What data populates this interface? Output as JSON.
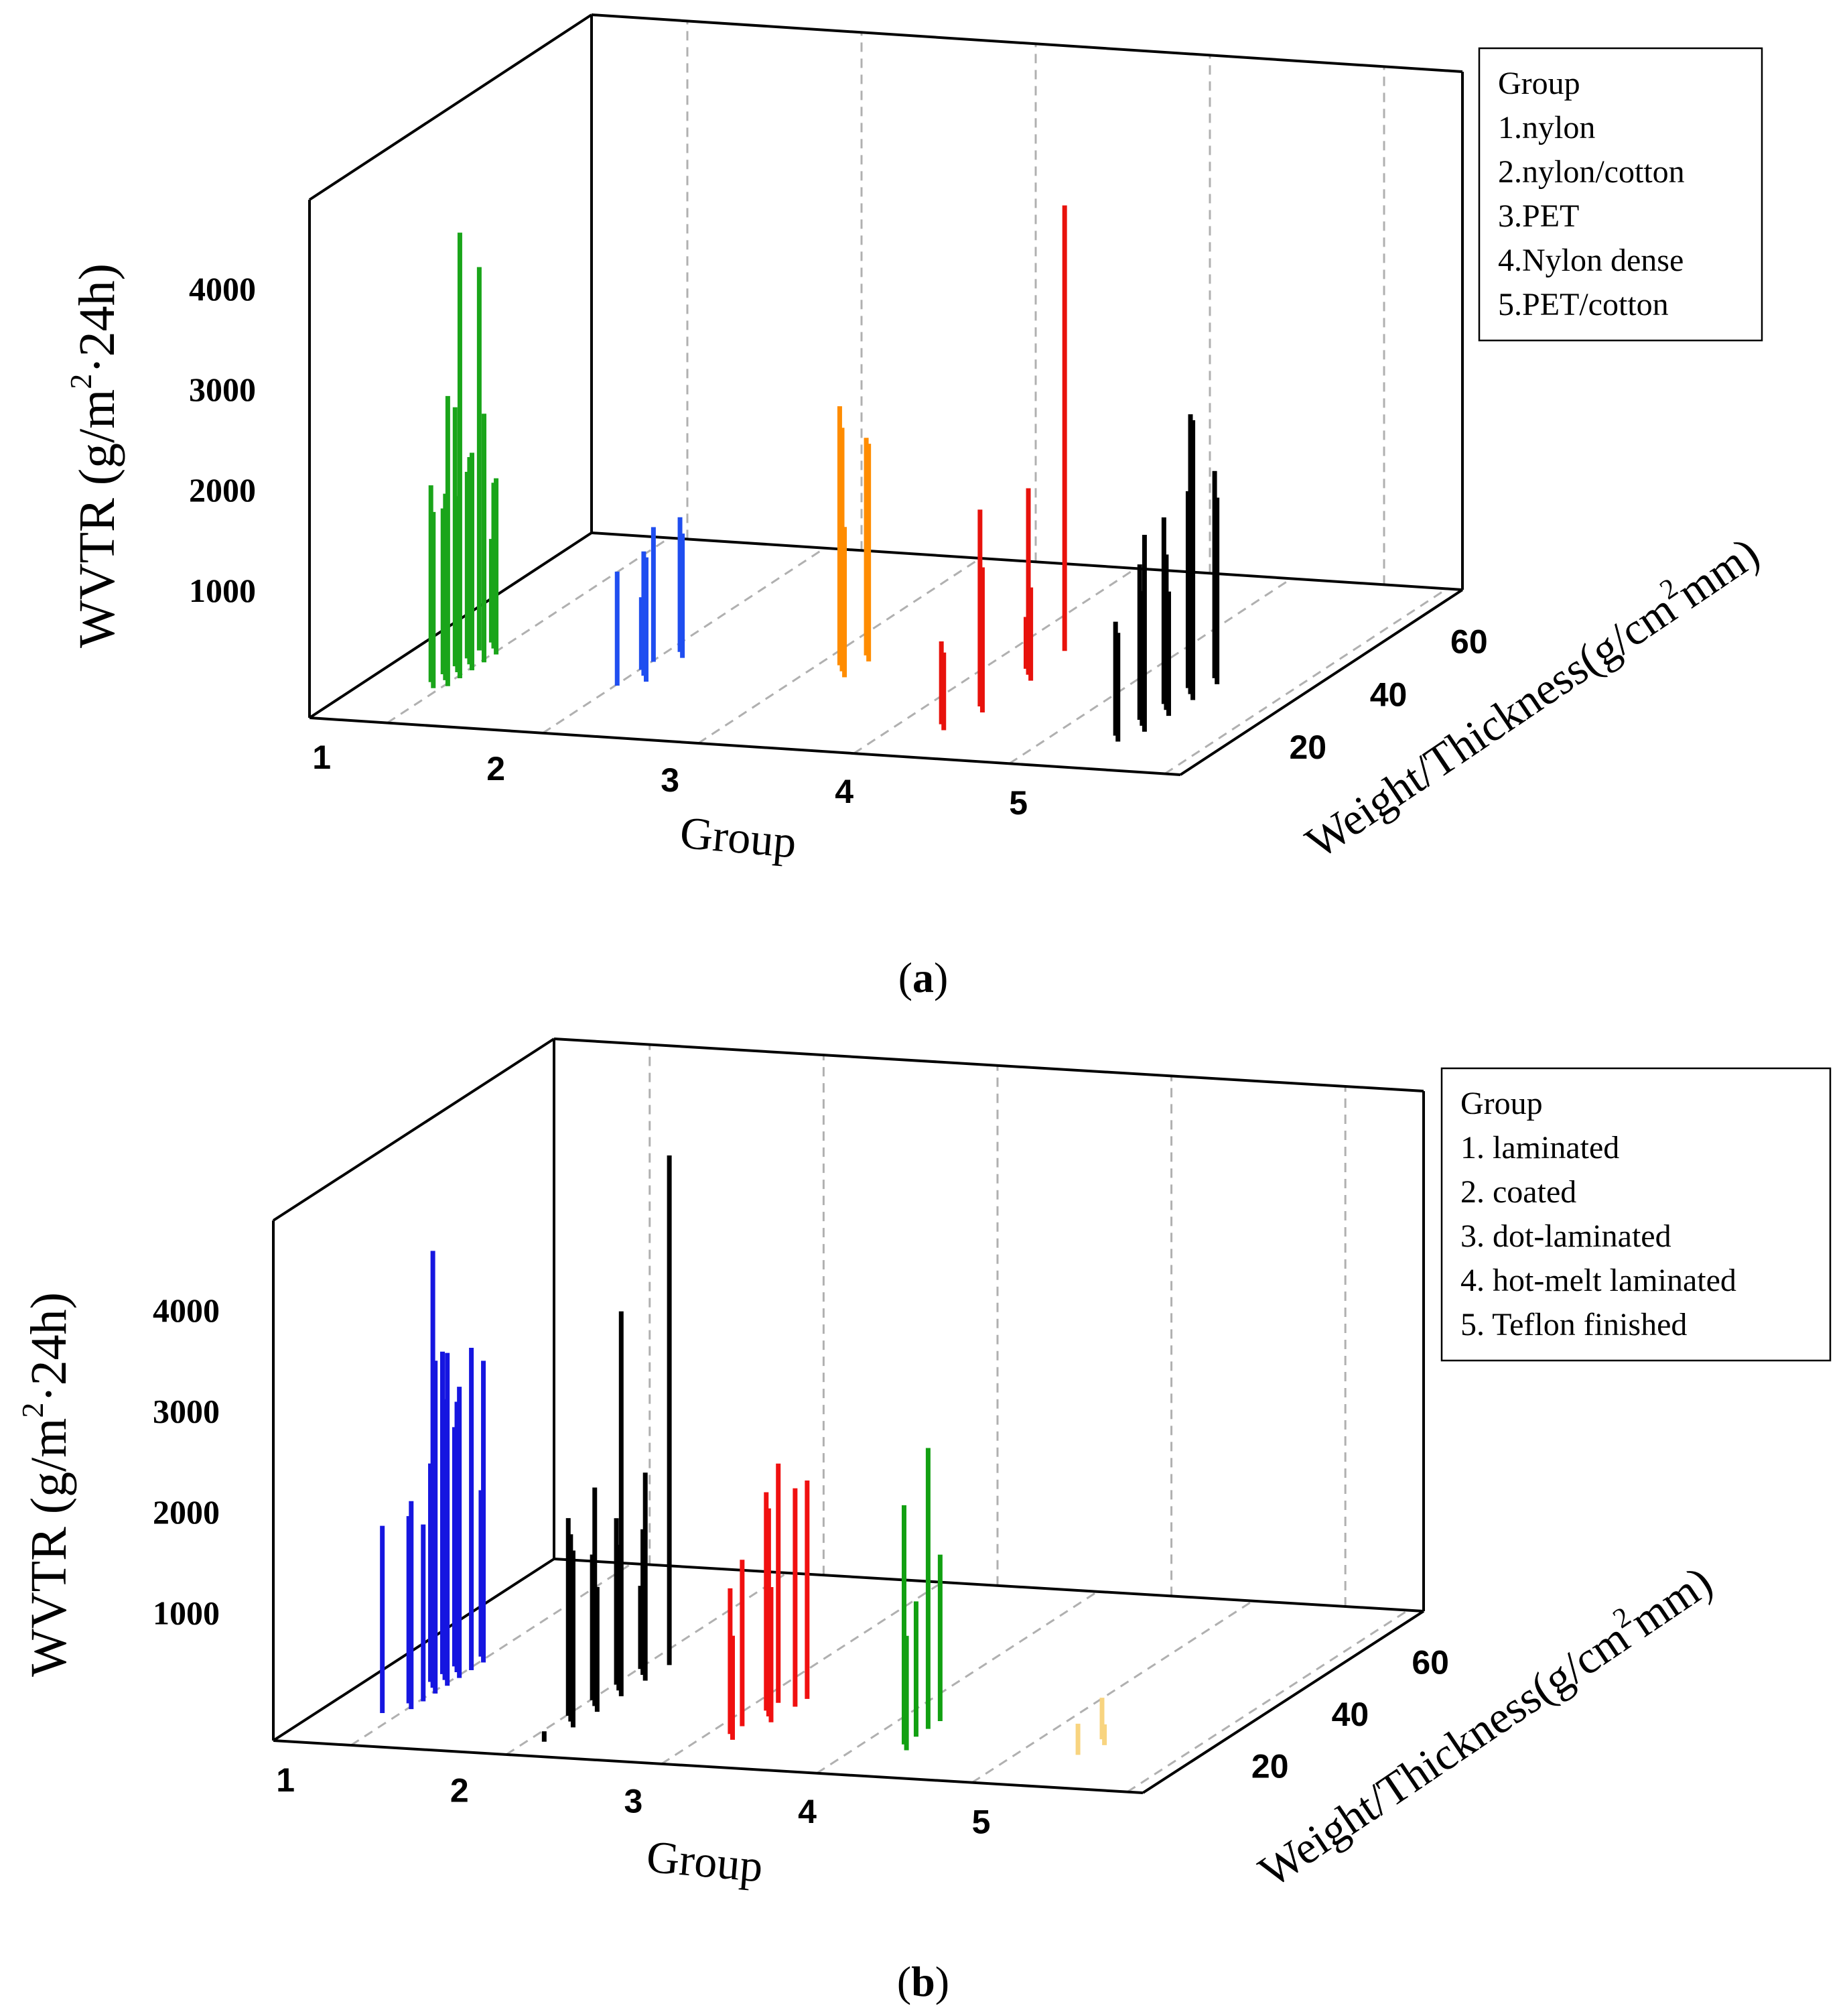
{
  "figure": {
    "caption_a": "a",
    "caption_b": "b"
  },
  "chart_data": [
    {
      "type": "bar3d",
      "panel": "a",
      "ylabel_main": "WVTR (g/m",
      "ylabel_sup": "2",
      "ylabel_end": "·24h)",
      "xlabel": "Group",
      "zlabel_main": "Weight/Thickness(g/cm",
      "zlabel_sup": "2",
      "zlabel_end": "mm)",
      "xticks": [
        "1",
        "2",
        "3",
        "4",
        "5"
      ],
      "yticks": [
        "1000",
        "2000",
        "3000",
        "4000"
      ],
      "zticks": [
        "20",
        "40",
        "60"
      ],
      "y_range": [
        500,
        5500
      ],
      "z_range": [
        0,
        70
      ],
      "legend_title": "Group",
      "legend": [
        "1.nylon",
        "2.nylon/cotton",
        "3.PET",
        "4.Nylon dense",
        "5.PET/cotton"
      ],
      "series": [
        {
          "color": "#1aa51a",
          "group": 1,
          "points": [
            [
              13,
              2200
            ],
            [
              14,
              3300
            ],
            [
              15,
              2400
            ],
            [
              16,
              2300
            ],
            [
              17,
              4800
            ],
            [
              18,
              2100
            ],
            [
              19,
              2200
            ],
            [
              20,
              2600
            ],
            [
              21,
              3000
            ],
            [
              22,
              2500
            ],
            [
              23,
              2900
            ],
            [
              24,
              2300
            ],
            [
              26,
              2200
            ],
            [
              27,
              4200
            ],
            [
              28,
              2100
            ],
            [
              30,
              1500
            ]
          ]
        },
        {
          "color": "#1f4ef0",
          "group": 2,
          "points": [
            [
              18,
              1600
            ],
            [
              20,
              1700
            ],
            [
              22,
              1700
            ],
            [
              24,
              1200
            ],
            [
              27,
              1800
            ],
            [
              29,
              1700
            ],
            [
              31,
              1800
            ]
          ]
        },
        {
          "color": "#ff8c00",
          "group": 3,
          "points": [
            [
              26,
              1950
            ],
            [
              28,
              2850
            ],
            [
              30,
              3000
            ],
            [
              32,
              2600
            ],
            [
              34,
              2600
            ]
          ]
        },
        {
          "color": "#e8120c",
          "group": 4,
          "points": [
            [
              10,
              1250
            ],
            [
              12,
              1300
            ],
            [
              17,
              1900
            ],
            [
              19,
              2400
            ],
            [
              29,
              1400
            ],
            [
              31,
              2300
            ],
            [
              33,
              1000
            ],
            [
              40,
              4800
            ]
          ]
        },
        {
          "color": "#000000",
          "group": 5,
          "points": [
            [
              10,
              1550
            ],
            [
              12,
              1600
            ],
            [
              14,
              2400
            ],
            [
              16,
              1800
            ],
            [
              18,
              2000
            ],
            [
              20,
              1700
            ],
            [
              22,
              2000
            ],
            [
              24,
              2300
            ],
            [
              26,
              3200
            ],
            [
              28,
              3200
            ],
            [
              30,
              2400
            ],
            [
              32,
              2300
            ],
            [
              34,
              2500
            ]
          ]
        }
      ]
    },
    {
      "type": "bar3d",
      "panel": "b",
      "ylabel_main": "WVTR (g/m",
      "ylabel_sup": "2",
      "ylabel_end": "·24h)",
      "xlabel": "Group",
      "zlabel_main": "Weight/Thickness(g/cm",
      "zlabel_sup": "2",
      "zlabel_end": "mm)",
      "xticks": [
        "1",
        "2",
        "3",
        "4",
        "5"
      ],
      "yticks": [
        "1000",
        "2000",
        "3000",
        "4000"
      ],
      "zticks": [
        "20",
        "40",
        "60"
      ],
      "y_range": [
        500,
        5500
      ],
      "z_range": [
        0,
        70
      ],
      "legend_title": "Group",
      "legend": [
        "1. laminated",
        "2. coated",
        "3. dot-laminated",
        "4. hot-melt laminated",
        "5. Teflon finished"
      ],
      "series": [
        {
          "color": "#1616e0",
          "group": 1,
          "points": [
            [
              12,
              2300
            ],
            [
              14,
              2500
            ],
            [
              16,
              2300
            ],
            [
              17,
              2200
            ],
            [
              20,
              3700
            ],
            [
              22,
              4700
            ],
            [
              23,
              3700
            ],
            [
              24,
              2600
            ],
            [
              25,
              3200
            ],
            [
              26,
              3300
            ],
            [
              27,
              3600
            ],
            [
              28,
              3100
            ],
            [
              29,
              3600
            ],
            [
              30,
              2800
            ],
            [
              32,
              3400
            ],
            [
              34,
              2100
            ]
          ]
        },
        {
          "color": "#000000",
          "group": 2,
          "points": [
            [
              9,
              400
            ],
            [
              11,
              2200
            ],
            [
              13,
              2300
            ],
            [
              15,
              2400
            ],
            [
              17,
              1700
            ],
            [
              19,
              2600
            ],
            [
              21,
              1900
            ],
            [
              23,
              4200
            ],
            [
              25,
              1900
            ],
            [
              27,
              2100
            ],
            [
              29,
              2500
            ],
            [
              31,
              1900
            ],
            [
              33,
              1300
            ],
            [
              35,
              5400
            ]
          ]
        },
        {
          "color": "#f01010",
          "group": 3,
          "points": [
            [
              10,
              1500
            ],
            [
              12,
              1900
            ],
            [
              15,
              2100
            ],
            [
              17,
              1800
            ],
            [
              19,
              2500
            ],
            [
              21,
              2600
            ],
            [
              23,
              2600
            ],
            [
              24,
              2800
            ],
            [
              26,
              2600
            ]
          ]
        },
        {
          "color": "#12a012",
          "group": 4,
          "points": [
            [
              10,
              1600
            ],
            [
              12,
              2800
            ],
            [
              15,
              1800
            ],
            [
              18,
              3200
            ],
            [
              21,
              2100
            ]
          ]
        },
        {
          "color": "#f8d480",
          "group": 5,
          "points": [
            [
              12,
              800
            ],
            [
              16,
              700
            ],
            [
              18,
              900
            ]
          ]
        }
      ]
    }
  ]
}
